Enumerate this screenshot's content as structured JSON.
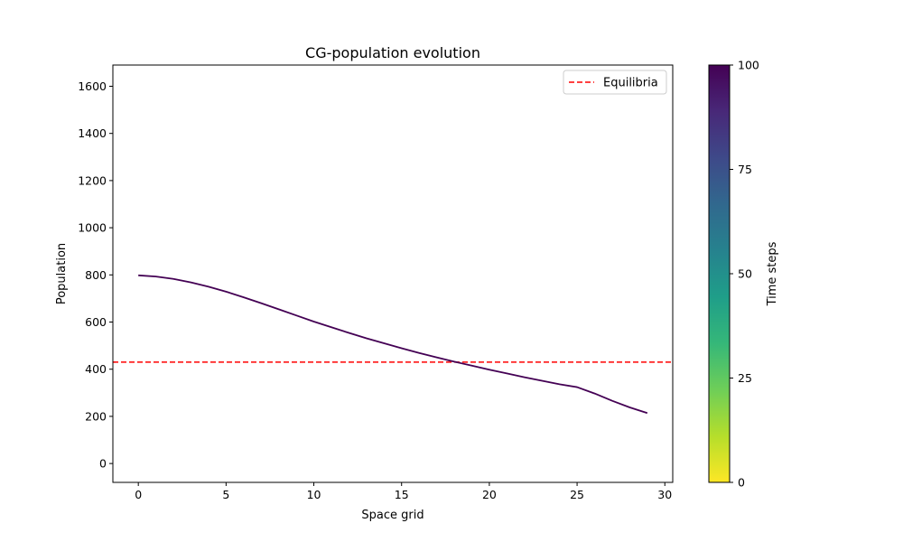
{
  "chart_data": {
    "type": "line",
    "title": "CG-population evolution",
    "xlabel": "Space grid",
    "ylabel": "Population",
    "xlim": [
      -1.45,
      30.45
    ],
    "ylim": [
      -80,
      1690
    ],
    "xticks": [
      0,
      5,
      10,
      15,
      20,
      25,
      30
    ],
    "yticks": [
      0,
      200,
      400,
      600,
      800,
      1000,
      1200,
      1400,
      1600
    ],
    "grid": false,
    "legend": {
      "placement": "top-right",
      "entries": [
        {
          "label": "Equilibria",
          "style": "dashed",
          "color": "#ff0000"
        }
      ]
    },
    "series": [
      {
        "color": "#440154",
        "time_step": 100,
        "x": [
          0,
          1,
          2,
          3,
          4,
          5,
          6,
          7,
          8,
          9,
          10,
          11,
          12,
          13,
          14,
          15,
          16,
          17,
          18,
          19,
          20,
          21,
          22,
          23,
          24,
          25,
          26,
          27,
          28,
          29
        ],
        "values": [
          798,
          793,
          783,
          768,
          750,
          729,
          705,
          680,
          654,
          628,
          602,
          578,
          554,
          531,
          510,
          489,
          469,
          450,
          432,
          415,
          398,
          382,
          366,
          351,
          336,
          324,
          297,
          266,
          238,
          214
        ]
      }
    ],
    "equilibrium": {
      "value": 430,
      "name": "Equilibria",
      "color": "#ff0000"
    },
    "colorbar": {
      "label": "Time steps",
      "range": [
        0,
        100
      ],
      "ticks": [
        0,
        25,
        50,
        75,
        100
      ],
      "colormap": "viridis (reversed)",
      "colors": [
        "#440154",
        "#482878",
        "#3e4989",
        "#31688e",
        "#26828e",
        "#1f9e89",
        "#35b779",
        "#6ece58",
        "#b5de2b",
        "#fde725"
      ]
    }
  }
}
